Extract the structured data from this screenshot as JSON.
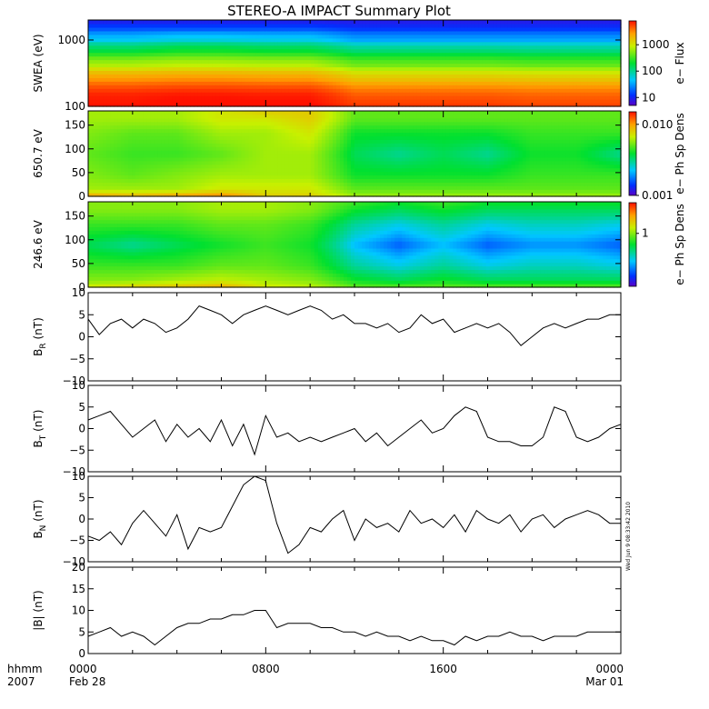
{
  "title": "STEREO-A IMPACT Summary Plot",
  "timestamp": "Wed Jun  9 08:33:42 2010",
  "time_axis": {
    "corner_labels": [
      "hhmm",
      "2007"
    ],
    "ticks": [
      {
        "hour": 0,
        "line1": "0000",
        "line2": "Feb 28"
      },
      {
        "hour": 8,
        "line1": "0800",
        "line2": ""
      },
      {
        "hour": 16,
        "line1": "1600",
        "line2": ""
      },
      {
        "hour": 24,
        "line1": "0000",
        "line2": "Mar 01"
      }
    ],
    "range_hours": [
      0,
      24
    ]
  },
  "chart_data": [
    {
      "type": "heatmap",
      "ylabel": "SWEA (eV)",
      "yscale": "log",
      "ylim": [
        100,
        2000
      ],
      "yticks": [
        {
          "value": 100,
          "label": "100"
        },
        {
          "value": 1000,
          "label": "1000"
        }
      ],
      "colorbar": {
        "label": "e− Flux",
        "scale": "log",
        "range": [
          5,
          8000
        ],
        "ticks": [
          {
            "value": 10,
            "label": "10"
          },
          {
            "value": 100,
            "label": "100"
          },
          {
            "value": 1000,
            "label": "1000"
          }
        ]
      },
      "x": [
        0,
        2,
        4,
        6,
        8,
        10,
        12,
        14,
        16,
        18,
        20,
        22,
        24
      ],
      "y": [
        100,
        150,
        250,
        400,
        650,
        1000,
        1500,
        2000
      ],
      "z": [
        [
          8000,
          7000,
          3000,
          800,
          200,
          50,
          15,
          8
        ],
        [
          8000,
          7000,
          3000,
          800,
          200,
          50,
          15,
          8
        ],
        [
          9000,
          7500,
          3200,
          900,
          250,
          60,
          15,
          8
        ],
        [
          9000,
          7500,
          3200,
          900,
          250,
          60,
          15,
          8
        ],
        [
          8500,
          7200,
          3000,
          850,
          220,
          55,
          15,
          8
        ],
        [
          8500,
          7200,
          3000,
          850,
          220,
          55,
          15,
          8
        ],
        [
          6000,
          4500,
          1800,
          500,
          140,
          35,
          12,
          8
        ],
        [
          6000,
          4500,
          1800,
          500,
          140,
          35,
          12,
          8
        ],
        [
          6000,
          4500,
          1800,
          500,
          140,
          35,
          12,
          8
        ],
        [
          6000,
          4500,
          1800,
          500,
          140,
          35,
          12,
          8
        ],
        [
          5500,
          4200,
          1700,
          450,
          130,
          35,
          12,
          8
        ],
        [
          5500,
          4200,
          1700,
          450,
          130,
          35,
          12,
          8
        ],
        [
          5500,
          4200,
          1700,
          450,
          130,
          35,
          12,
          8
        ]
      ]
    },
    {
      "type": "heatmap",
      "ylabel": "650.7 eV",
      "ylim": [
        0,
        180
      ],
      "yticks": [
        {
          "value": 0,
          "label": "0"
        },
        {
          "value": 50,
          "label": "50"
        },
        {
          "value": 100,
          "label": "100"
        },
        {
          "value": 150,
          "label": "150"
        }
      ],
      "colorbar": {
        "label": "e− Ph Sp Dens",
        "scale": "log",
        "range": [
          0.001,
          0.015
        ],
        "ticks": [
          {
            "value": 0.001,
            "label": "0.001"
          },
          {
            "value": 0.01,
            "label": "0.010"
          }
        ]
      },
      "x": [
        0,
        2,
        4,
        6,
        8,
        10,
        12,
        14,
        16,
        18,
        20,
        22,
        24
      ],
      "y": [
        0,
        15,
        45,
        90,
        135,
        165,
        180
      ],
      "z": [
        [
          0.01,
          0.006,
          0.0055,
          0.005,
          0.0055,
          0.006,
          0.006
        ],
        [
          0.009,
          0.006,
          0.005,
          0.0045,
          0.005,
          0.006,
          0.006
        ],
        [
          0.01,
          0.006,
          0.0055,
          0.0045,
          0.005,
          0.006,
          0.006
        ],
        [
          0.011,
          0.007,
          0.006,
          0.005,
          0.006,
          0.007,
          0.007
        ],
        [
          0.008,
          0.007,
          0.006,
          0.006,
          0.006,
          0.007,
          0.008
        ],
        [
          0.008,
          0.007,
          0.006,
          0.006,
          0.007,
          0.008,
          0.008
        ],
        [
          0.006,
          0.005,
          0.004,
          0.0035,
          0.004,
          0.005,
          0.005
        ],
        [
          0.006,
          0.005,
          0.004,
          0.003,
          0.004,
          0.005,
          0.005
        ],
        [
          0.006,
          0.005,
          0.004,
          0.0035,
          0.004,
          0.005,
          0.005
        ],
        [
          0.006,
          0.005,
          0.004,
          0.003,
          0.004,
          0.005,
          0.005
        ],
        [
          0.006,
          0.005,
          0.0045,
          0.004,
          0.0045,
          0.005,
          0.005
        ],
        [
          0.006,
          0.005,
          0.0045,
          0.004,
          0.0045,
          0.005,
          0.005
        ],
        [
          0.006,
          0.005,
          0.0045,
          0.003,
          0.0045,
          0.005,
          0.005
        ]
      ]
    },
    {
      "type": "heatmap",
      "ylabel": "246.6 eV",
      "ylim": [
        0,
        180
      ],
      "yticks": [
        {
          "value": 0,
          "label": "0"
        },
        {
          "value": 50,
          "label": "50"
        },
        {
          "value": 100,
          "label": "100"
        },
        {
          "value": 150,
          "label": "150"
        }
      ],
      "colorbar": {
        "label": "e− Ph Sp Dens",
        "scale": "log",
        "range": [
          0.15,
          3
        ],
        "ticks": [
          {
            "value": 1,
            "label": "1"
          }
        ]
      },
      "x": [
        0,
        2,
        4,
        6,
        8,
        10,
        12,
        14,
        16,
        18,
        20,
        22,
        24
      ],
      "y": [
        0,
        15,
        45,
        90,
        135,
        165,
        180
      ],
      "z": [
        [
          1.3,
          1.0,
          0.8,
          0.6,
          0.8,
          1.0,
          1.0
        ],
        [
          1.5,
          1.0,
          0.8,
          0.5,
          0.8,
          1.0,
          1.0
        ],
        [
          1.6,
          1.1,
          0.8,
          0.6,
          0.8,
          1.0,
          1.0
        ],
        [
          1.8,
          1.2,
          0.9,
          0.7,
          0.9,
          1.1,
          1.1
        ],
        [
          1.3,
          1.1,
          0.9,
          0.8,
          0.9,
          1.1,
          1.1
        ],
        [
          1.2,
          1.0,
          0.8,
          0.7,
          0.8,
          1.0,
          1.0
        ],
        [
          0.9,
          0.7,
          0.5,
          0.35,
          0.5,
          0.7,
          0.8
        ],
        [
          0.9,
          0.6,
          0.4,
          0.25,
          0.4,
          0.6,
          0.7
        ],
        [
          0.9,
          0.7,
          0.5,
          0.35,
          0.5,
          0.7,
          0.8
        ],
        [
          0.9,
          0.6,
          0.4,
          0.25,
          0.4,
          0.6,
          0.7
        ],
        [
          0.9,
          0.6,
          0.45,
          0.3,
          0.45,
          0.6,
          0.7
        ],
        [
          0.9,
          0.6,
          0.45,
          0.3,
          0.45,
          0.6,
          0.7
        ],
        [
          0.9,
          0.6,
          0.4,
          0.25,
          0.4,
          0.6,
          0.7
        ]
      ]
    },
    {
      "type": "line",
      "ylabel": "B",
      "ylabel_sub": "R",
      "ylabel_unit": " (nT)",
      "ylim": [
        -10,
        10
      ],
      "yticks": [
        {
          "value": -10,
          "label": "−10"
        },
        {
          "value": -5,
          "label": "−5"
        },
        {
          "value": 0,
          "label": "0"
        },
        {
          "value": 5,
          "label": "5"
        },
        {
          "value": 10,
          "label": "10"
        }
      ],
      "series": [
        {
          "x": [
            0,
            0.5,
            1,
            1.5,
            2,
            2.5,
            3,
            3.5,
            4,
            4.5,
            5,
            5.5,
            6,
            6.5,
            7,
            7.5,
            8,
            8.5,
            9,
            9.5,
            10,
            10.5,
            11,
            11.5,
            12,
            12.5,
            13,
            13.5,
            14,
            14.5,
            15,
            15.5,
            16,
            16.5,
            17,
            17.5,
            18,
            18.5,
            19,
            19.5,
            20,
            20.5,
            21,
            21.5,
            22,
            22.5,
            23,
            23.5,
            24
          ],
          "y": [
            4,
            0.5,
            3,
            4,
            2,
            4,
            3,
            1,
            2,
            4,
            7,
            6,
            5,
            3,
            5,
            6,
            7,
            6,
            5,
            6,
            7,
            6,
            4,
            5,
            3,
            3,
            2,
            3,
            1,
            2,
            5,
            3,
            4,
            1,
            2,
            3,
            2,
            3,
            1,
            -2,
            0,
            2,
            3,
            2,
            3,
            4,
            4,
            5,
            5
          ]
        }
      ]
    },
    {
      "type": "line",
      "ylabel": "B",
      "ylabel_sub": "T",
      "ylabel_unit": " (nT)",
      "ylim": [
        -10,
        10
      ],
      "yticks": [
        {
          "value": -10,
          "label": "−10"
        },
        {
          "value": -5,
          "label": "−5"
        },
        {
          "value": 0,
          "label": "0"
        },
        {
          "value": 5,
          "label": "5"
        },
        {
          "value": 10,
          "label": "10"
        }
      ],
      "series": [
        {
          "x": [
            0,
            0.5,
            1,
            1.5,
            2,
            2.5,
            3,
            3.5,
            4,
            4.5,
            5,
            5.5,
            6,
            6.5,
            7,
            7.5,
            8,
            8.5,
            9,
            9.5,
            10,
            10.5,
            11,
            11.5,
            12,
            12.5,
            13,
            13.5,
            14,
            14.5,
            15,
            15.5,
            16,
            16.5,
            17,
            17.5,
            18,
            18.5,
            19,
            19.5,
            20,
            20.5,
            21,
            21.5,
            22,
            22.5,
            23,
            23.5,
            24
          ],
          "y": [
            2,
            3,
            4,
            1,
            -2,
            0,
            2,
            -3,
            1,
            -2,
            0,
            -3,
            2,
            -4,
            1,
            -6,
            3,
            -2,
            -1,
            -3,
            -2,
            -3,
            -2,
            -1,
            0,
            -3,
            -1,
            -4,
            -2,
            0,
            2,
            -1,
            0,
            3,
            5,
            4,
            -2,
            -3,
            -3,
            -4,
            -4,
            -2,
            5,
            4,
            -2,
            -3,
            -2,
            0,
            1
          ]
        }
      ]
    },
    {
      "type": "line",
      "ylabel": "B",
      "ylabel_sub": "N",
      "ylabel_unit": " (nT)",
      "ylim": [
        -10,
        10
      ],
      "yticks": [
        {
          "value": -10,
          "label": "−10"
        },
        {
          "value": -5,
          "label": "−5"
        },
        {
          "value": 0,
          "label": "0"
        },
        {
          "value": 5,
          "label": "5"
        },
        {
          "value": 10,
          "label": "10"
        }
      ],
      "series": [
        {
          "x": [
            0,
            0.5,
            1,
            1.5,
            2,
            2.5,
            3,
            3.5,
            4,
            4.5,
            5,
            5.5,
            6,
            6.5,
            7,
            7.5,
            8,
            8.5,
            9,
            9.5,
            10,
            10.5,
            11,
            11.5,
            12,
            12.5,
            13,
            13.5,
            14,
            14.5,
            15,
            15.5,
            16,
            16.5,
            17,
            17.5,
            18,
            18.5,
            19,
            19.5,
            20,
            20.5,
            21,
            21.5,
            22,
            22.5,
            23,
            23.5,
            24
          ],
          "y": [
            -4,
            -5,
            -3,
            -6,
            -1,
            2,
            -1,
            -4,
            1,
            -7,
            -2,
            -3,
            -2,
            3,
            8,
            10,
            9,
            -1,
            -8,
            -6,
            -2,
            -3,
            0,
            2,
            -5,
            0,
            -2,
            -1,
            -3,
            2,
            -1,
            0,
            -2,
            1,
            -3,
            2,
            0,
            -1,
            1,
            -3,
            0,
            1,
            -2,
            0,
            1,
            2,
            1,
            -1,
            -1
          ]
        }
      ]
    },
    {
      "type": "line",
      "ylabel": "|B| (nT)",
      "ylim": [
        0,
        20
      ],
      "yticks": [
        {
          "value": 0,
          "label": "0"
        },
        {
          "value": 5,
          "label": "5"
        },
        {
          "value": 10,
          "label": "10"
        },
        {
          "value": 15,
          "label": "15"
        },
        {
          "value": 20,
          "label": "20"
        }
      ],
      "series": [
        {
          "x": [
            0,
            0.5,
            1,
            1.5,
            2,
            2.5,
            3,
            3.5,
            4,
            4.5,
            5,
            5.5,
            6,
            6.5,
            7,
            7.5,
            8,
            8.5,
            9,
            9.5,
            10,
            10.5,
            11,
            11.5,
            12,
            12.5,
            13,
            13.5,
            14,
            14.5,
            15,
            15.5,
            16,
            16.5,
            17,
            17.5,
            18,
            18.5,
            19,
            19.5,
            20,
            20.5,
            21,
            21.5,
            22,
            22.5,
            23,
            23.5,
            24
          ],
          "y": [
            4,
            5,
            6,
            4,
            5,
            4,
            2,
            4,
            6,
            7,
            7,
            8,
            8,
            9,
            9,
            10,
            10,
            6,
            7,
            7,
            7,
            6,
            6,
            5,
            5,
            4,
            5,
            4,
            4,
            3,
            4,
            3,
            3,
            2,
            4,
            3,
            4,
            4,
            5,
            4,
            4,
            3,
            4,
            4,
            4,
            5,
            5,
            5,
            5
          ]
        }
      ]
    }
  ]
}
